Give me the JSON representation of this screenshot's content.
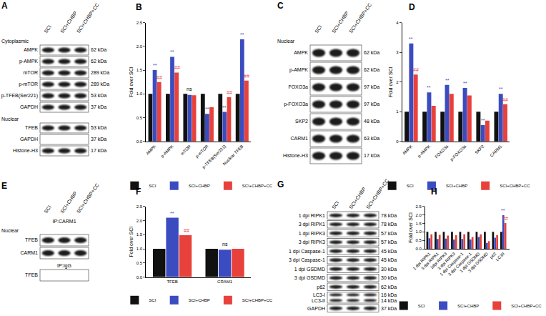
{
  "blots": [
    {
      "panel": "A",
      "lanes": [
        "SCI",
        "SCI+CHBP",
        "SCI+CHBP+CC"
      ],
      "sections": [
        {
          "subheader": "Cytoplasmic",
          "rows": [
            {
              "label": "AMPK",
              "kda": "62 kDa"
            },
            {
              "label": "p-AMPK",
              "kda": "62 kDa"
            },
            {
              "label": "mTOR",
              "kda": "289 kDa"
            },
            {
              "label": "p-mTOR",
              "kda": "289 kDa"
            },
            {
              "label": "p-TFEB(Ser221)",
              "kda": "53 kDa"
            },
            {
              "label": "GAPDH",
              "kda": "37 kDa"
            }
          ]
        },
        {
          "subheader": "Nuclear",
          "rows": [
            {
              "label": "TFEB",
              "kda": "53 kDa"
            },
            {
              "label": "GAPDH",
              "kda": "37 kDa",
              "empty": true
            },
            {
              "label": "Histone-H3",
              "kda": "17 kDa"
            }
          ]
        }
      ]
    },
    {
      "panel": "C",
      "lanes": [
        "SCI",
        "SCI+CHBP",
        "SCI+CHBP+CC"
      ],
      "sections": [
        {
          "subheader": "Nuclear",
          "rows": [
            {
              "label": "AMPK",
              "kda": "62 kDa"
            },
            {
              "label": "p-AMPK",
              "kda": "62 kDa"
            },
            {
              "label": "FOXO3a",
              "kda": "97 kDa"
            },
            {
              "label": "p-FOXO3a",
              "kda": "97 kDa"
            },
            {
              "label": "SKP2",
              "kda": "48 kDa"
            },
            {
              "label": "CARM1",
              "kda": "63 kDa"
            },
            {
              "label": "Histone-H3",
              "kda": "17 kDa"
            }
          ]
        }
      ]
    },
    {
      "panel": "E",
      "lanes": [
        "SCI",
        "SCI+CHBP",
        "SCI+CHBP+CC"
      ],
      "sections": [
        {
          "header": "IP:CARM1",
          "subheader": "Nuclear",
          "rows": [
            {
              "label": "TFEB"
            },
            {
              "label": "CARM1"
            }
          ]
        },
        {
          "header": "IP:IgG",
          "rows": [
            {
              "label": "TFEB",
              "empty": true
            }
          ]
        }
      ]
    },
    {
      "panel": "G",
      "lanes": [
        "SCI",
        "SCI+CHBP",
        "SCI+CHBP+CC"
      ],
      "sections": [
        {
          "rows": [
            {
              "label": "1 dpi RIPK1",
              "kda": "78 kDa"
            },
            {
              "label": "3 dpi RIPK1",
              "kda": "78 kDa"
            },
            {
              "label": "1 dpi RIPK3",
              "kda": "57 kDa"
            },
            {
              "label": "3 dpi RIPK3",
              "kda": "57 kDa"
            },
            {
              "label": "1 dpi Caspase-1",
              "kda": "45 kDa"
            },
            {
              "label": "3 dpi Caspase-1",
              "kda": "45 kDa"
            },
            {
              "label": "1 dpi GSDMD",
              "kda": "30 kDa"
            },
            {
              "label": "3 dpi GSDMD",
              "kda": "30 kDa"
            },
            {
              "label": "p62",
              "kda": "62 kDa"
            },
            {
              "label": [
                "LC3-I",
                "LC3-II"
              ],
              "kda": [
                "16 kDa",
                "14 kDa"
              ]
            },
            {
              "label": "GAPDH",
              "kda": "37 kDa"
            }
          ]
        }
      ]
    }
  ],
  "chart_data": [
    {
      "panel": "B",
      "type": "bar",
      "y_label": "Fold over SCI",
      "grid": false,
      "categories": [
        "AMPK",
        "p-AMPK",
        "mTOR",
        "p-mTOR",
        "p-TFEB(Ser221)",
        "Nuclear TFEB"
      ],
      "series": [
        {
          "name": "SCI",
          "color": "#111111",
          "values": [
            1,
            1,
            1,
            1,
            1,
            1
          ]
        },
        {
          "name": "SCI+CHBP",
          "color": "#3b4cc0",
          "values": [
            1.5,
            1.78,
            0.98,
            0.58,
            0.62,
            2.15
          ]
        },
        {
          "name": "SCI+CHBP+CC",
          "color": "#e8413c",
          "values": [
            1.25,
            1.45,
            0.97,
            0.72,
            0.93,
            1.28
          ]
        }
      ],
      "ylim": [
        0,
        2.5
      ],
      "yticks": [
        {
          "value": 0,
          "label": "0.0"
        },
        {
          "value": 0.5,
          "label": "0.5"
        },
        {
          "value": 1,
          "label": "1.0"
        },
        {
          "value": 1.5,
          "label": "1.5"
        },
        {
          "value": 2,
          "label": "2.0"
        },
        {
          "value": 2.5,
          "label": "2.5"
        }
      ],
      "annotations": [
        {
          "category": "AMPK",
          "series": "SCI+CHBP",
          "text": "**"
        },
        {
          "category": "AMPK",
          "series": "SCI+CHBP+CC",
          "text": "##"
        },
        {
          "category": "p-AMPK",
          "series": "SCI+CHBP",
          "text": "**"
        },
        {
          "category": "p-AMPK",
          "series": "SCI+CHBP+CC",
          "text": "##"
        },
        {
          "category": "mTOR",
          "text": "ns"
        },
        {
          "category": "p-mTOR",
          "series": "SCI+CHBP",
          "text": "**"
        },
        {
          "category": "p-TFEB(Ser221)",
          "series": "SCI+CHBP",
          "text": "**"
        },
        {
          "category": "p-TFEB(Ser221)",
          "series": "SCI+CHBP+CC",
          "text": "##"
        },
        {
          "category": "Nuclear TFEB",
          "series": "SCI+CHBP",
          "text": "**"
        },
        {
          "category": "Nuclear TFEB",
          "series": "SCI+CHBP+CC",
          "text": "##"
        }
      ]
    },
    {
      "panel": "D",
      "type": "bar",
      "y_label": "Fold over SCI",
      "grid": false,
      "categories": [
        "AMPK",
        "p-AMPK",
        "FOXO3a",
        "p-FOXO3a",
        "SKP2",
        "CARM1"
      ],
      "series": [
        {
          "name": "SCI",
          "color": "#111111",
          "values": [
            1,
            1,
            1,
            1,
            1,
            1
          ]
        },
        {
          "name": "SCI+CHBP",
          "color": "#3b4cc0",
          "values": [
            3.3,
            1.65,
            1.9,
            1.8,
            0.55,
            1.6
          ]
        },
        {
          "name": "SCI+CHBP+CC",
          "color": "#e8413c",
          "values": [
            2.25,
            1.2,
            1.6,
            1.55,
            0.7,
            1.25
          ]
        }
      ],
      "ylim": [
        0,
        4
      ],
      "yticks": [
        0,
        1,
        2,
        3,
        4
      ],
      "annotations": [
        {
          "category": "AMPK",
          "series": "SCI+CHBP",
          "text": "**"
        },
        {
          "category": "AMPK",
          "series": "SCI+CHBP+CC",
          "text": "##"
        },
        {
          "category": "p-AMPK",
          "series": "SCI+CHBP",
          "text": "**"
        },
        {
          "category": "FOXO3a",
          "series": "SCI+CHBP",
          "text": "**"
        },
        {
          "category": "p-FOXO3a",
          "series": "SCI+CHBP",
          "text": "**"
        },
        {
          "category": "SKP2",
          "series": "SCI+CHBP",
          "text": "**"
        },
        {
          "category": "CARM1",
          "series": "SCI+CHBP",
          "text": "**"
        },
        {
          "category": "CARM1",
          "series": "SCI+CHBP+CC",
          "text": "##"
        }
      ]
    },
    {
      "panel": "F",
      "type": "bar",
      "y_label": "Fold over SCI",
      "grid": false,
      "categories": [
        "TFEB",
        "CRAM1"
      ],
      "series": [
        {
          "name": "SCI",
          "color": "#111111",
          "values": [
            1,
            1
          ]
        },
        {
          "name": "SCI+CHBP",
          "color": "#3b4cc0",
          "values": [
            2.1,
            0.97
          ]
        },
        {
          "name": "SCI+CHBP+CC",
          "color": "#e8413c",
          "values": [
            1.48,
            1
          ]
        }
      ],
      "ylim": [
        0,
        2.5
      ],
      "yticks": [
        {
          "value": 0,
          "label": "0.0"
        },
        {
          "value": 0.5,
          "label": "0.5"
        },
        {
          "value": 1,
          "label": "1.0"
        },
        {
          "value": 1.5,
          "label": "1.5"
        },
        {
          "value": 2,
          "label": "2.0"
        },
        {
          "value": 2.5,
          "label": "2.5"
        }
      ],
      "annotations": [
        {
          "category": "TFEB",
          "series": "SCI+CHBP",
          "text": "**"
        },
        {
          "category": "TFEB",
          "series": "SCI+CHBP+CC",
          "text": "##"
        },
        {
          "category": "CRAM1",
          "text": "ns"
        }
      ]
    },
    {
      "panel": "H",
      "type": "bar",
      "y_label": "Fold over SCI",
      "grid": false,
      "categories": [
        "1 dpi RIPK1",
        "3 dpi RIPK1",
        "1dpi RIPK3",
        "3 dpi RIPK3",
        "1 dpi Caspase-1",
        "3 dpi Caspase-1",
        "1 dpi GSDMD",
        "3 dpi GSDMD",
        "p62",
        "LC3II"
      ],
      "series": [
        {
          "name": "SCI",
          "color": "#111111",
          "values": [
            1,
            1,
            1,
            1,
            1,
            1,
            1,
            1,
            1,
            1
          ]
        },
        {
          "name": "SCI+CHBP",
          "color": "#3b4cc0",
          "values": [
            0.62,
            0.58,
            0.6,
            0.55,
            0.58,
            0.55,
            0.7,
            0.35,
            0.65,
            1.98
          ]
        },
        {
          "name": "SCI+CHBP+CC",
          "color": "#e8413c",
          "values": [
            0.85,
            0.82,
            0.78,
            0.8,
            0.85,
            0.7,
            0.85,
            0.45,
            0.8,
            1.52
          ]
        }
      ],
      "ylim": [
        0,
        2.5
      ],
      "yticks": [
        {
          "value": 0,
          "label": "0.0"
        },
        {
          "value": 0.5,
          "label": "0.5"
        },
        {
          "value": 1,
          "label": "1.0"
        },
        {
          "value": 1.5,
          "label": "1.5"
        },
        {
          "value": 2,
          "label": "2.0"
        },
        {
          "value": 2.5,
          "label": "2.5"
        }
      ],
      "annotations": [
        {
          "category": "LC3II",
          "series": "SCI+CHBP",
          "text": "**"
        },
        {
          "category": "LC3II",
          "series": "SCI+CHBP+CC",
          "text": "##"
        }
      ]
    }
  ]
}
